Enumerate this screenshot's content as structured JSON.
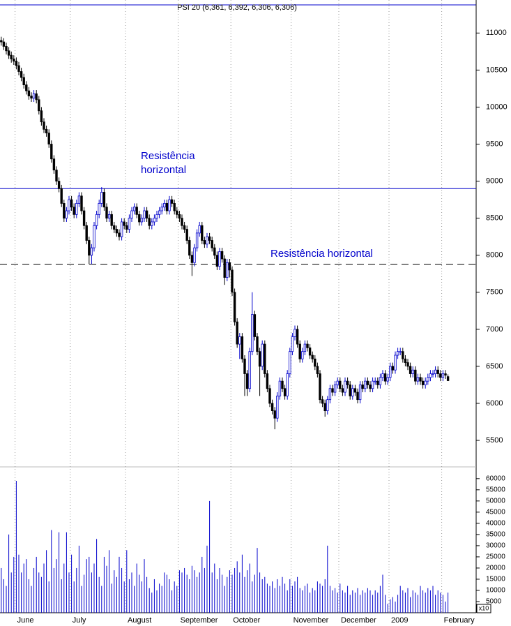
{
  "chart_data": {
    "type": "candlestick",
    "title": "PSI 20 (6,361, 6,392, 6,306, 6,306)",
    "up_color": "#0000cc",
    "down_color": "#000000",
    "categories": [
      null,
      null,
      null,
      null,
      null,
      null,
      "June",
      null,
      null,
      null,
      null,
      null,
      null,
      null,
      null,
      null,
      null,
      null,
      null,
      null,
      null,
      null,
      null,
      null,
      null,
      null,
      null,
      null,
      "July",
      null,
      null,
      null,
      null,
      null,
      null,
      null,
      null,
      null,
      null,
      null,
      null,
      null,
      null,
      null,
      null,
      null,
      null,
      null,
      null,
      null,
      "August",
      null,
      null,
      null,
      null,
      null,
      null,
      null,
      null,
      null,
      null,
      null,
      null,
      null,
      null,
      null,
      null,
      null,
      null,
      null,
      null,
      "September",
      null,
      null,
      null,
      null,
      null,
      null,
      null,
      null,
      null,
      null,
      null,
      null,
      null,
      null,
      null,
      null,
      null,
      null,
      null,
      null,
      "October",
      null,
      null,
      null,
      null,
      null,
      null,
      null,
      null,
      null,
      null,
      null,
      null,
      null,
      null,
      null,
      null,
      null,
      null,
      null,
      null,
      null,
      null,
      null,
      "November",
      null,
      null,
      null,
      null,
      null,
      null,
      null,
      null,
      null,
      null,
      null,
      null,
      null,
      null,
      null,
      null,
      null,
      null,
      "December",
      null,
      null,
      null,
      null,
      null,
      null,
      null,
      null,
      null,
      null,
      null,
      null,
      null,
      null,
      null,
      null,
      null,
      null,
      null,
      "2009",
      null,
      null,
      null,
      null,
      null,
      null,
      null,
      null,
      null,
      null,
      null,
      null,
      null,
      null,
      null,
      null,
      null,
      null,
      null,
      null,
      "February",
      null,
      null
    ],
    "open": [
      10900,
      10880,
      10820,
      10760,
      10700,
      10650,
      10620,
      10560,
      10480,
      10400,
      10300,
      10220,
      10150,
      10120,
      10180,
      10100,
      9950,
      9800,
      9700,
      9650,
      9500,
      9300,
      9150,
      9000,
      8900,
      8700,
      8500,
      8600,
      8750,
      8650,
      8550,
      8700,
      8800,
      8600,
      8400,
      8200,
      8000,
      8100,
      8400,
      8550,
      8700,
      8850,
      8650,
      8500,
      8550,
      8400,
      8350,
      8300,
      8250,
      8450,
      8400,
      8350,
      8500,
      8600,
      8650,
      8550,
      8450,
      8500,
      8600,
      8500,
      8400,
      8450,
      8500,
      8550,
      8600,
      8650,
      8700,
      8600,
      8750,
      8700,
      8600,
      8550,
      8500,
      8400,
      8350,
      8200,
      8000,
      7900,
      8100,
      8300,
      8400,
      8200,
      8150,
      8250,
      8200,
      8100,
      8000,
      7850,
      8050,
      7950,
      7700,
      7900,
      7800,
      7500,
      7100,
      6800,
      6900,
      6600,
      6400,
      6200,
      6700,
      7200,
      6900,
      6700,
      6500,
      6800,
      6400,
      6200,
      6000,
      5900,
      5800,
      6100,
      6300,
      6200,
      6100,
      6400,
      6700,
      6900,
      7000,
      6800,
      6600,
      6700,
      6800,
      6750,
      6650,
      6600,
      6500,
      6400,
      6050,
      6000,
      5900,
      6050,
      6200,
      6150,
      6250,
      6300,
      6200,
      6150,
      6300,
      6250,
      6100,
      6200,
      6150,
      6050,
      6250,
      6200,
      6300,
      6250,
      6200,
      6300,
      6300,
      6250,
      6350,
      6400,
      6300,
      6350,
      6500,
      6450,
      6650,
      6700,
      6700,
      6600,
      6550,
      6500,
      6400,
      6450,
      6300,
      6350,
      6300,
      6250,
      6300,
      6350,
      6400,
      6400,
      6450,
      6400,
      6350,
      6400,
      6361
    ],
    "high": [
      10950,
      10930,
      10870,
      10810,
      10750,
      10700,
      10670,
      10610,
      10530,
      10450,
      10350,
      10270,
      10200,
      10230,
      10230,
      10150,
      10000,
      9850,
      9750,
      9700,
      9550,
      9350,
      9200,
      9050,
      8950,
      8750,
      8650,
      8800,
      8800,
      8700,
      8750,
      8850,
      8850,
      8650,
      8450,
      8250,
      8150,
      8450,
      8600,
      8750,
      8920,
      8900,
      8700,
      8600,
      8600,
      8450,
      8400,
      8350,
      8500,
      8500,
      8450,
      8550,
      8650,
      8700,
      8700,
      8600,
      8550,
      8650,
      8650,
      8550,
      8500,
      8550,
      8600,
      8650,
      8700,
      8750,
      8750,
      8800,
      8800,
      8750,
      8650,
      8600,
      8550,
      8450,
      8400,
      8250,
      8050,
      8150,
      8350,
      8450,
      8450,
      8250,
      8300,
      8300,
      8250,
      8150,
      8050,
      8100,
      8100,
      8000,
      7950,
      7950,
      7850,
      7550,
      7150,
      6950,
      6950,
      6650,
      6450,
      6750,
      7500,
      7250,
      6950,
      6750,
      6850,
      6850,
      6450,
      6250,
      6050,
      5950,
      6150,
      6350,
      6350,
      6250,
      6450,
      6750,
      6950,
      7050,
      7050,
      6850,
      6750,
      6850,
      6850,
      6800,
      6700,
      6650,
      6550,
      6450,
      6100,
      6050,
      6100,
      6250,
      6250,
      6300,
      6350,
      6350,
      6250,
      6350,
      6350,
      6300,
      6250,
      6250,
      6200,
      6300,
      6300,
      6350,
      6350,
      6300,
      6350,
      6350,
      6350,
      6400,
      6450,
      6450,
      6400,
      6550,
      6550,
      6700,
      6750,
      6750,
      6750,
      6650,
      6600,
      6550,
      6500,
      6500,
      6400,
      6400,
      6350,
      6350,
      6400,
      6450,
      6450,
      6500,
      6500,
      6450,
      6450,
      6450,
      6392
    ],
    "low": [
      10830,
      10770,
      10710,
      10650,
      10600,
      10570,
      10510,
      10430,
      10350,
      10250,
      10170,
      10100,
      10070,
      10070,
      10050,
      9900,
      9750,
      9650,
      9600,
      9450,
      9250,
      9100,
      8950,
      8850,
      8650,
      8450,
      8450,
      8550,
      8600,
      8500,
      8500,
      8650,
      8550,
      8350,
      8150,
      7880,
      7880,
      8050,
      8350,
      8500,
      8650,
      8600,
      8450,
      8450,
      8350,
      8300,
      8250,
      8200,
      8200,
      8350,
      8300,
      8300,
      8450,
      8550,
      8500,
      8400,
      8400,
      8450,
      8450,
      8350,
      8350,
      8400,
      8450,
      8500,
      8550,
      8600,
      8550,
      8550,
      8650,
      8550,
      8500,
      8450,
      8350,
      8300,
      8150,
      7950,
      7720,
      7850,
      8050,
      8250,
      8150,
      8100,
      8100,
      8150,
      8050,
      7950,
      7800,
      7800,
      7900,
      7600,
      7650,
      7700,
      7450,
      7050,
      6750,
      6600,
      6550,
      6100,
      6100,
      6150,
      6650,
      6850,
      6650,
      6100,
      6450,
      6350,
      6150,
      5950,
      5850,
      5650,
      5750,
      6050,
      6150,
      6050,
      6050,
      6350,
      6650,
      6850,
      6750,
      6550,
      6550,
      6650,
      6700,
      6600,
      6550,
      6450,
      6350,
      6000,
      5950,
      5820,
      5850,
      6000,
      6100,
      6100,
      6200,
      6150,
      6100,
      6100,
      6200,
      6050,
      6050,
      6100,
      6000,
      6000,
      6150,
      6150,
      6200,
      6150,
      6150,
      6250,
      6200,
      6200,
      6300,
      6250,
      6250,
      6300,
      6400,
      6400,
      6600,
      6650,
      6550,
      6500,
      6450,
      6350,
      6350,
      6250,
      6250,
      6250,
      6200,
      6200,
      6250,
      6300,
      6350,
      6350,
      6350,
      6300,
      6300,
      6330,
      6306
    ],
    "close": [
      10880,
      10820,
      10760,
      10700,
      10650,
      10620,
      10560,
      10480,
      10400,
      10300,
      10220,
      10150,
      10120,
      10180,
      10100,
      9950,
      9800,
      9700,
      9650,
      9500,
      9300,
      9150,
      9000,
      8900,
      8700,
      8500,
      8600,
      8750,
      8650,
      8550,
      8700,
      8800,
      8600,
      8400,
      8200,
      8000,
      8100,
      8400,
      8550,
      8700,
      8850,
      8650,
      8500,
      8550,
      8400,
      8350,
      8300,
      8250,
      8450,
      8400,
      8350,
      8500,
      8600,
      8650,
      8550,
      8450,
      8500,
      8600,
      8500,
      8400,
      8450,
      8500,
      8550,
      8600,
      8650,
      8700,
      8600,
      8750,
      8700,
      8600,
      8550,
      8500,
      8400,
      8350,
      8200,
      8000,
      7900,
      8100,
      8300,
      8400,
      8200,
      8150,
      8250,
      8200,
      8100,
      8000,
      7850,
      8050,
      7950,
      7700,
      7900,
      7800,
      7500,
      7100,
      6800,
      6900,
      6600,
      6400,
      6200,
      6700,
      7200,
      6900,
      6700,
      6500,
      6800,
      6400,
      6200,
      6000,
      5900,
      5800,
      6100,
      6300,
      6200,
      6100,
      6400,
      6700,
      6900,
      7000,
      6800,
      6600,
      6700,
      6800,
      6750,
      6650,
      6600,
      6500,
      6400,
      6050,
      6000,
      5900,
      6050,
      6200,
      6150,
      6250,
      6300,
      6200,
      6150,
      6300,
      6250,
      6100,
      6200,
      6150,
      6050,
      6250,
      6200,
      6300,
      6250,
      6200,
      6300,
      6300,
      6250,
      6350,
      6400,
      6300,
      6350,
      6500,
      6450,
      6650,
      6700,
      6700,
      6600,
      6550,
      6500,
      6400,
      6450,
      6300,
      6350,
      6300,
      6250,
      6300,
      6350,
      6400,
      6400,
      6450,
      6400,
      6350,
      6400,
      6380,
      6306
    ],
    "ylim": [
      5180,
      11380
    ],
    "yticks": [
      5500,
      6000,
      6500,
      7000,
      7500,
      8000,
      8500,
      9000,
      9500,
      10000,
      10500,
      11000
    ],
    "reference_lines": [
      {
        "value": 8900,
        "style": "solid",
        "color": "#0000cc"
      },
      {
        "value": 7880,
        "style": "dashed",
        "color": "#000000"
      }
    ],
    "annotations": [
      {
        "lines": [
          "Resistência",
          "horizontal"
        ]
      },
      {
        "lines": [
          "Resistência horizontal"
        ]
      }
    ],
    "volume": {
      "color": "#0000cc",
      "x_axis_note": "x10",
      "ylim": [
        0,
        64000
      ],
      "yticks": [
        5000,
        10000,
        15000,
        20000,
        25000,
        30000,
        35000,
        40000,
        45000,
        50000,
        55000,
        60000
      ],
      "values": [
        20000,
        15000,
        12000,
        35000,
        18000,
        25000,
        59000,
        26000,
        18000,
        22000,
        24000,
        15000,
        12000,
        20000,
        25000,
        18000,
        16000,
        22000,
        28000,
        14000,
        37000,
        20000,
        24000,
        36000,
        15000,
        22000,
        36000,
        18000,
        26000,
        14000,
        20000,
        30000,
        12000,
        17000,
        24000,
        25000,
        18000,
        22000,
        33000,
        16000,
        12000,
        25000,
        21000,
        28000,
        13000,
        19000,
        16000,
        25000,
        20000,
        14000,
        28000,
        15000,
        18000,
        12000,
        22000,
        17000,
        14000,
        24000,
        16000,
        11000,
        9000,
        15000,
        10000,
        13000,
        12000,
        18000,
        17000,
        15000,
        10000,
        14000,
        12000,
        19000,
        18000,
        20000,
        17000,
        15000,
        21000,
        19000,
        16000,
        18000,
        25000,
        20000,
        30000,
        50000,
        18000,
        22000,
        15000,
        20000,
        17000,
        12000,
        16000,
        19000,
        17000,
        20000,
        23000,
        18000,
        26000,
        16000,
        19000,
        22000,
        14000,
        17000,
        29000,
        18000,
        15000,
        16000,
        13000,
        12000,
        14000,
        11000,
        15000,
        12000,
        16000,
        13000,
        10000,
        15000,
        12000,
        14000,
        16000,
        11000,
        10000,
        12000,
        13000,
        9000,
        11000,
        10000,
        14000,
        13000,
        12000,
        15000,
        30000,
        12000,
        10000,
        11000,
        9000,
        13000,
        10000,
        9000,
        12000,
        8000,
        10000,
        9000,
        11000,
        8000,
        10000,
        9000,
        11000,
        10000,
        8000,
        10000,
        9000,
        12000,
        17000,
        8000,
        4000,
        6000,
        7000,
        5000,
        8000,
        12000,
        10000,
        9000,
        11000,
        7000,
        10000,
        9000,
        8000,
        12000,
        10000,
        9000,
        11000,
        10000,
        12000,
        8000,
        10000,
        9000,
        8000,
        5000,
        9000
      ]
    }
  }
}
